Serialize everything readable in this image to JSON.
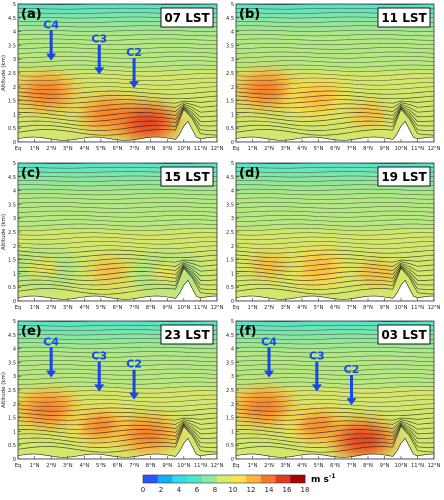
{
  "figure": {
    "colorbar": {
      "ticks": [
        "0",
        "2",
        "4",
        "6",
        "8",
        "10",
        "12",
        "14",
        "16",
        "18"
      ],
      "unit": "m s",
      "unit_exp": "-1",
      "colors": [
        "#2d55ff",
        "#13b0f6",
        "#2ee0e6",
        "#4fe6c5",
        "#8fe89c",
        "#d5ec6c",
        "#ffe14d",
        "#ffb43b",
        "#f6782c",
        "#e33a1f",
        "#a80000"
      ]
    },
    "arrow_color": "#1747e8"
  },
  "chart_data": [
    {
      "type": "heatmap",
      "panel_label": "(a)",
      "time_label": "07 LST",
      "ylabel": "Altitude (km)",
      "ylim": [
        0,
        5
      ],
      "xlim": [
        0,
        12
      ],
      "yticks": [
        "0",
        "0.5",
        "1",
        "1.5",
        "2",
        "2.5",
        "3",
        "3.5",
        "4",
        "4.5",
        "5"
      ],
      "xticks": [
        "Eq",
        "1°N",
        "2°N",
        "3°N",
        "4°N",
        "5°N",
        "6°N",
        "7°N",
        "8°N",
        "9°N",
        "10°N",
        "11°N",
        "12°N"
      ],
      "jets": [
        {
          "label": "C4",
          "lat": 2.0,
          "z": 1.8
        },
        {
          "label": "C3",
          "lat": 4.9,
          "z": 1.3
        },
        {
          "label": "C2",
          "lat": 7.0,
          "z": 0.8
        }
      ],
      "wind_cores": [
        {
          "lat": 1.7,
          "z": 1.8,
          "speed": 15
        },
        {
          "lat": 5.5,
          "z": 1.0,
          "speed": 15
        },
        {
          "lat": 7.8,
          "z": 0.7,
          "speed": 17
        }
      ]
    },
    {
      "type": "heatmap",
      "panel_label": "(b)",
      "time_label": "11 LST",
      "ylim": [
        0,
        5
      ],
      "xlim": [
        0,
        12
      ],
      "yticks": [
        "0",
        "0.5",
        "1",
        "1.5",
        "2",
        "2.5",
        "3",
        "3.5",
        "4",
        "4.5",
        "5"
      ],
      "xticks": [
        "Eq",
        "1°N",
        "2°N",
        "3°N",
        "4°N",
        "5°N",
        "6°N",
        "7°N",
        "8°N",
        "9°N",
        "10°N",
        "11°N",
        "12°N"
      ],
      "jets": [],
      "wind_cores": [
        {
          "lat": 1.8,
          "z": 1.9,
          "speed": 15
        },
        {
          "lat": 5.0,
          "z": 1.6,
          "speed": 13
        },
        {
          "lat": 8.0,
          "z": 1.0,
          "speed": 12
        }
      ]
    },
    {
      "type": "heatmap",
      "panel_label": "(c)",
      "time_label": "15 LST",
      "ylabel": "Altitude (km)",
      "ylim": [
        0,
        5
      ],
      "xlim": [
        0,
        12
      ],
      "yticks": [
        "0",
        "0.5",
        "1",
        "1.5",
        "2",
        "2.5",
        "3",
        "3.5",
        "4",
        "4.5",
        "5"
      ],
      "xticks": [
        "Eq",
        "1°N",
        "2°N",
        "3°N",
        "4°N",
        "5°N",
        "6°N",
        "7°N",
        "8°N",
        "9°N",
        "10°N",
        "11°N",
        "12°N"
      ],
      "jets": [],
      "wind_cores": [
        {
          "lat": 5.5,
          "z": 1.1,
          "speed": 12
        },
        {
          "lat": 1.5,
          "z": 1.2,
          "speed": 11
        },
        {
          "lat": 9.0,
          "z": 1.0,
          "speed": 11
        }
      ]
    },
    {
      "type": "heatmap",
      "panel_label": "(d)",
      "time_label": "19 LST",
      "ylim": [
        0,
        5
      ],
      "xlim": [
        0,
        12
      ],
      "yticks": [
        "0",
        "0.5",
        "1",
        "1.5",
        "2",
        "2.5",
        "3",
        "3.5",
        "4",
        "4.5",
        "5"
      ],
      "xticks": [
        "Eq",
        "1°N",
        "2°N",
        "3°N",
        "4°N",
        "5°N",
        "6°N",
        "7°N",
        "8°N",
        "9°N",
        "10°N",
        "11°N",
        "12°N"
      ],
      "jets": [],
      "wind_cores": [
        {
          "lat": 5.0,
          "z": 1.2,
          "speed": 13
        },
        {
          "lat": 2.0,
          "z": 1.3,
          "speed": 12
        },
        {
          "lat": 8.5,
          "z": 1.0,
          "speed": 12
        }
      ]
    },
    {
      "type": "heatmap",
      "panel_label": "(e)",
      "time_label": "23 LST",
      "ylabel": "Altitude (km)",
      "ylim": [
        0,
        5
      ],
      "xlim": [
        0,
        12
      ],
      "yticks": [
        "0",
        "0.5",
        "1",
        "1.5",
        "2",
        "2.5",
        "3",
        "3.5",
        "4",
        "4.5",
        "5"
      ],
      "xticks": [
        "Eq",
        "1°N",
        "2°N",
        "3°N",
        "4°N",
        "5°N",
        "6°N",
        "7°N",
        "8°N",
        "9°N",
        "10°N",
        "11°N",
        "12°N"
      ],
      "jets": [
        {
          "label": "C4",
          "lat": 2.0,
          "z": 1.8
        },
        {
          "label": "C3",
          "lat": 4.9,
          "z": 1.3
        },
        {
          "label": "C2",
          "lat": 7.0,
          "z": 1.0
        }
      ],
      "wind_cores": [
        {
          "lat": 1.8,
          "z": 1.8,
          "speed": 15
        },
        {
          "lat": 5.0,
          "z": 1.2,
          "speed": 14
        },
        {
          "lat": 7.8,
          "z": 0.9,
          "speed": 15
        }
      ]
    },
    {
      "type": "heatmap",
      "panel_label": "(f)",
      "time_label": "03 LST",
      "ylim": [
        0,
        5
      ],
      "xlim": [
        0,
        12
      ],
      "yticks": [
        "0",
        "0.5",
        "1",
        "1.5",
        "2",
        "2.5",
        "3",
        "3.5",
        "4",
        "4.5",
        "5"
      ],
      "xticks": [
        "Eq",
        "1°N",
        "2°N",
        "3°N",
        "4°N",
        "5°N",
        "6°N",
        "7°N",
        "8°N",
        "9°N",
        "10°N",
        "11°N",
        "12°N"
      ],
      "jets": [
        {
          "label": "C4",
          "lat": 2.0,
          "z": 1.8
        },
        {
          "label": "C3",
          "lat": 4.9,
          "z": 1.3
        },
        {
          "label": "C2",
          "lat": 7.0,
          "z": 0.8
        }
      ],
      "wind_cores": [
        {
          "lat": 1.7,
          "z": 1.9,
          "speed": 15
        },
        {
          "lat": 5.0,
          "z": 1.2,
          "speed": 14
        },
        {
          "lat": 7.7,
          "z": 0.7,
          "speed": 17
        }
      ]
    }
  ]
}
